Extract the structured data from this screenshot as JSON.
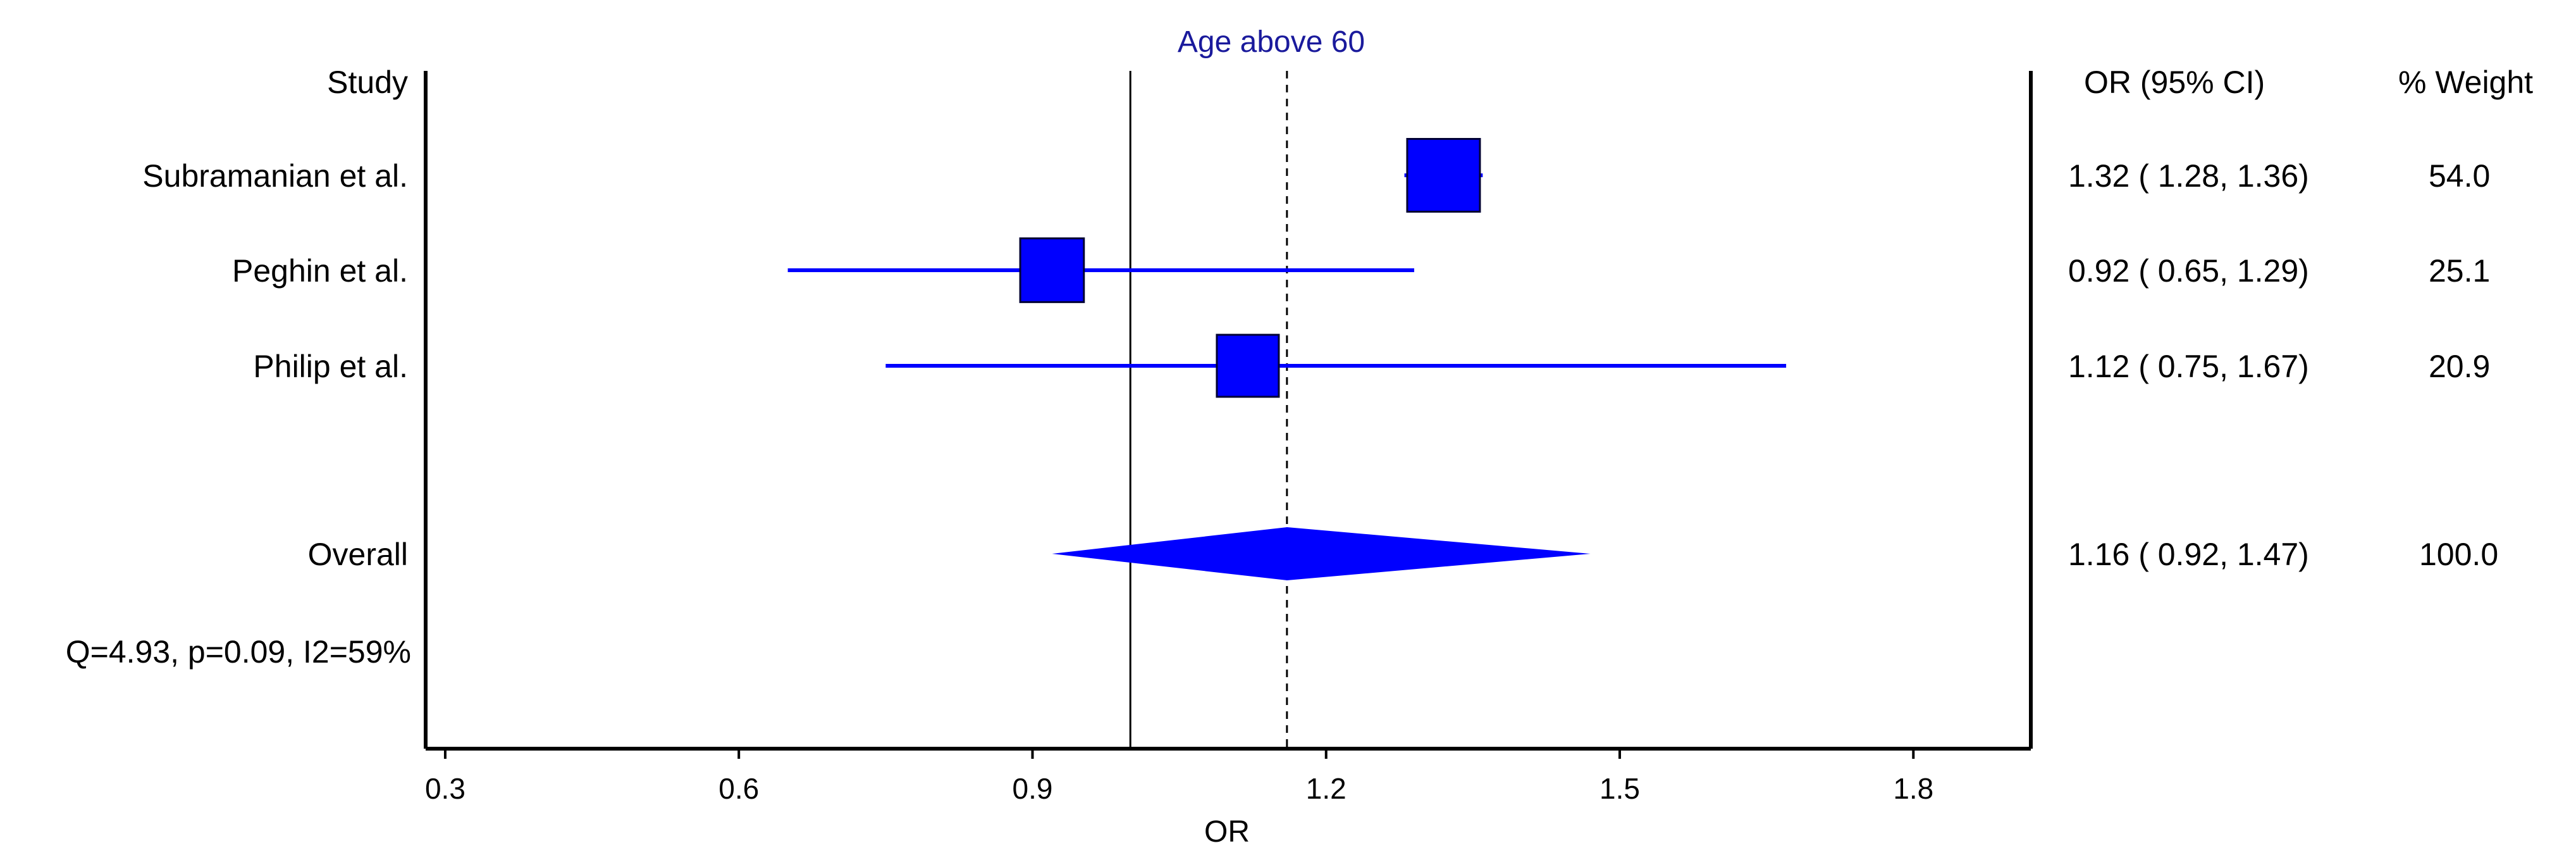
{
  "chart_data": {
    "type": "forest",
    "title": "Age above 60",
    "headers": {
      "study": "Study",
      "ci": "OR (95% CI)",
      "weight": "% Weight"
    },
    "xlabel": "OR",
    "xlim": [
      0.28,
      1.92
    ],
    "x_ticks": [
      0.3,
      0.6,
      0.9,
      1.2,
      1.5,
      1.8
    ],
    "x_tick_labels": [
      "0.3",
      "0.6",
      "0.9",
      "1.2",
      "1.5",
      "1.8"
    ],
    "null_line": 1.0,
    "pooled_line": 1.16,
    "color": "#0000ff",
    "studies": [
      {
        "name": "Subramanian et al.",
        "or": 1.32,
        "lo": 1.28,
        "hi": 1.36,
        "weight": 54.0,
        "ci_text": "1.32 (  1.28,  1.36)",
        "weight_text": "54.0"
      },
      {
        "name": "Peghin et al.",
        "or": 0.92,
        "lo": 0.65,
        "hi": 1.29,
        "weight": 25.1,
        "ci_text": "0.92 (  0.65,  1.29)",
        "weight_text": "25.1"
      },
      {
        "name": "Philip et al.",
        "or": 1.12,
        "lo": 0.75,
        "hi": 1.67,
        "weight": 20.9,
        "ci_text": "1.12 (  0.75,  1.67)",
        "weight_text": "20.9"
      }
    ],
    "overall": {
      "name": "Overall",
      "or": 1.16,
      "lo": 0.92,
      "hi": 1.47,
      "ci_text": "1.16 (  0.92,  1.47)",
      "weight_text": "100.0"
    },
    "heterogeneity": "Q=4.93, p=0.09, I2=59%"
  }
}
